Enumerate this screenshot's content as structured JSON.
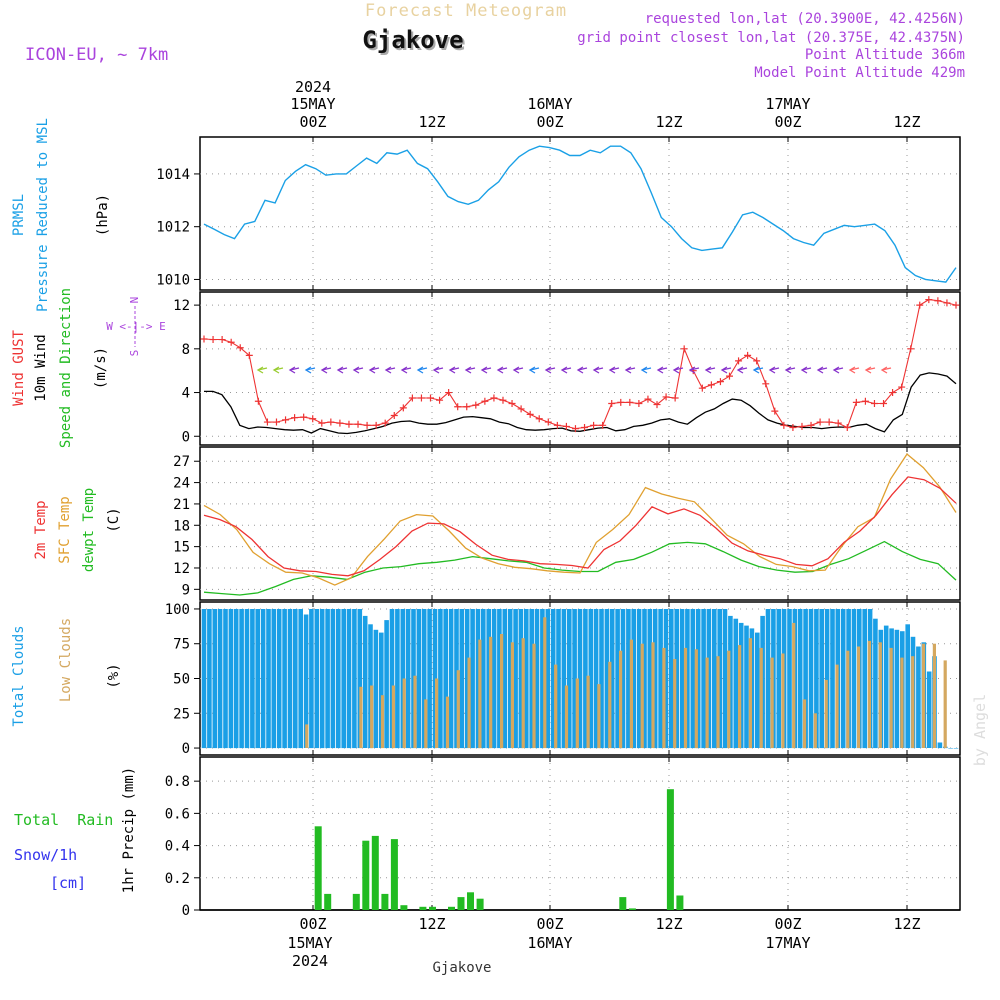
{
  "header": {
    "title": "Forecast Meteogram",
    "location": "Gjakove",
    "model": "ICON-EU, ~ 7km",
    "requested": "requested lon,lat (20.3900E, 42.4256N)",
    "gridpoint": "grid point closest lon,lat (20.375E, 42.4375N)",
    "point_alt": "Point Altitude 366m",
    "model_alt": "Model Point Altitude 429m",
    "watermark": "by Angel",
    "footer": "Gjakove"
  },
  "colors": {
    "pressure": "#1aa0e6",
    "gust": "#ee3333",
    "wind": "#000000",
    "temp2m": "#ee3333",
    "sfc": "#e0a030",
    "dewpt": "#22bb22",
    "total_clouds": "#1a9fe6",
    "low_clouds": "#d4a860",
    "rain": "#22bb22",
    "snow": "#3333ee",
    "purple": "#aa44dd",
    "title_tan": "#e8d2a0"
  },
  "time_axis": {
    "top_ticks": [
      "00Z",
      "12Z",
      "00Z",
      "12Z",
      "00Z",
      "12Z"
    ],
    "top_dates": [
      "15MAY",
      "16MAY",
      "17MAY"
    ],
    "year": "2024",
    "bottom_ticks": [
      "00Z",
      "12Z",
      "00Z",
      "12Z",
      "00Z",
      "12Z"
    ],
    "bottom_dates": [
      "15MAY",
      "16MAY",
      "17MAY"
    ],
    "bottom_year": "2024"
  },
  "panel_labels": {
    "p1": [
      "PRMSL",
      "Pressure Reduced to MSL",
      "(hPa)"
    ],
    "p2": [
      "Wind GUST",
      "10m Wind",
      "Speed and Direction",
      "(m/s)"
    ],
    "p3": [
      "2m Temp",
      "SFC Temp",
      "dewpt Temp",
      "(C)"
    ],
    "p4": [
      "Total Clouds",
      "Low Clouds",
      "(%)"
    ],
    "p5": [
      "Total  Rain",
      "Snow/1h",
      "[cm]",
      "1hr Precip (mm)"
    ],
    "compass": [
      "N",
      "W <-|-> E",
      "S"
    ]
  },
  "chart_data": {
    "type": "meteogram",
    "x_unit": "hours from 2024-05-14 15Z",
    "pressure": {
      "name": "PRMSL (hPa)",
      "yticks": [
        "1014",
        "1012",
        "1010"
      ],
      "ylim": [
        1009.6,
        1015.4
      ],
      "values": [
        1012.1,
        1011.9,
        1011.7,
        1011.55,
        1012.1,
        1012.2,
        1013.0,
        1012.9,
        1013.75,
        1014.1,
        1014.35,
        1014.2,
        1013.95,
        1014.0,
        1014.0,
        1014.3,
        1014.6,
        1014.4,
        1014.8,
        1014.75,
        1014.9,
        1014.4,
        1014.2,
        1013.7,
        1013.15,
        1012.95,
        1012.85,
        1013.0,
        1013.4,
        1013.7,
        1014.25,
        1014.65,
        1014.9,
        1015.05,
        1015.0,
        1014.9,
        1014.7,
        1014.7,
        1014.9,
        1014.8,
        1015.05,
        1015.05,
        1014.8,
        1014.2,
        1013.3,
        1012.35,
        1012.0,
        1011.55,
        1011.2,
        1011.1,
        1011.15,
        1011.2,
        1011.8,
        1012.45,
        1012.55,
        1012.35,
        1012.1,
        1011.85,
        1011.55,
        1011.4,
        1011.3,
        1011.75,
        1011.9,
        1012.05,
        1012.0,
        1012.05,
        1012.1,
        1011.85,
        1011.3,
        1010.45,
        1010.15,
        1010.0,
        1009.95,
        1009.9,
        1010.45
      ]
    },
    "wind": {
      "name": "10m Wind / Wind GUST (m/s)",
      "yticks": [
        "12",
        "8",
        "4",
        "0"
      ],
      "ylim": [
        -0.8,
        13.2
      ],
      "gust": [
        8.9,
        8.85,
        8.85,
        8.6,
        8.1,
        7.4,
        3.2,
        1.3,
        1.3,
        1.5,
        1.7,
        1.75,
        1.6,
        1.2,
        1.3,
        1.2,
        1.1,
        1.1,
        1.0,
        1.0,
        1.2,
        1.9,
        2.6,
        3.5,
        3.5,
        3.5,
        3.3,
        4.0,
        2.7,
        2.7,
        2.85,
        3.2,
        3.5,
        3.3,
        3.0,
        2.5,
        2.0,
        1.6,
        1.3,
        1.0,
        0.9,
        0.7,
        0.8,
        1.0,
        1.0,
        3.0,
        3.1,
        3.1,
        3.0,
        3.4,
        2.9,
        3.6,
        3.5,
        8.0,
        6.0,
        4.4,
        4.7,
        5.0,
        5.5,
        6.9,
        7.4,
        6.9,
        4.8,
        2.3,
        1.0,
        0.8,
        0.9,
        1.0,
        1.3,
        1.3,
        1.2,
        0.8,
        3.1,
        3.2,
        3.0,
        3.0,
        4.0,
        4.5,
        8.0,
        12.0,
        12.5,
        12.4,
        12.2,
        12.0
      ],
      "speed": [
        4.1,
        4.1,
        3.8,
        2.7,
        1.0,
        0.7,
        0.85,
        0.8,
        0.7,
        0.6,
        0.55,
        0.6,
        0.3,
        0.7,
        0.5,
        0.3,
        0.25,
        0.35,
        0.5,
        0.7,
        0.9,
        1.2,
        1.35,
        1.4,
        1.2,
        1.1,
        1.1,
        1.25,
        1.5,
        1.75,
        1.8,
        1.7,
        1.6,
        1.3,
        1.15,
        0.8,
        0.6,
        0.55,
        0.6,
        0.7,
        0.75,
        0.5,
        0.45,
        0.6,
        0.75,
        0.8,
        0.5,
        0.6,
        0.9,
        1.0,
        1.2,
        1.5,
        1.6,
        1.3,
        1.1,
        1.7,
        2.2,
        2.5,
        3.0,
        3.4,
        3.3,
        2.8,
        2.1,
        1.5,
        1.2,
        1.0,
        0.9,
        0.8,
        0.8,
        0.7,
        0.8,
        0.85,
        0.8,
        1.0,
        1.1,
        0.7,
        0.4,
        1.5,
        2.0,
        4.5,
        5.6,
        5.8,
        5.7,
        5.5,
        4.8
      ]
    },
    "temperature": {
      "name": "Temperature (C)",
      "yticks": [
        "27",
        "24",
        "21",
        "18",
        "15",
        "12",
        "9"
      ],
      "ylim": [
        7.5,
        29.0
      ],
      "t2m": [
        19.4,
        18.8,
        17.8,
        16.0,
        13.6,
        12.0,
        11.6,
        11.5,
        11.1,
        10.9,
        11.6,
        13.2,
        15.0,
        17.2,
        18.3,
        18.2,
        17.1,
        15.3,
        13.8,
        13.2,
        13.0,
        12.6,
        12.5,
        12.35,
        12.0,
        14.6,
        15.8,
        18.0,
        20.6,
        19.6,
        20.3,
        19.4,
        17.6,
        15.5,
        14.4,
        13.8,
        13.3,
        12.5,
        12.3,
        13.3,
        15.6,
        17.2,
        19.4,
        22.3,
        24.8,
        24.4,
        23.2,
        21.1
      ],
      "sfc": [
        20.8,
        19.5,
        17.4,
        14.2,
        12.6,
        11.4,
        11.3,
        10.6,
        9.6,
        10.6,
        13.6,
        16.0,
        18.6,
        19.5,
        19.3,
        17.2,
        14.8,
        13.4,
        12.6,
        12.1,
        11.9,
        11.6,
        11.4,
        11.3,
        15.6,
        17.4,
        19.5,
        23.3,
        22.4,
        21.8,
        21.3,
        19.0,
        16.6,
        15.4,
        13.6,
        12.5,
        12.2,
        11.6,
        11.7,
        15.0,
        17.8,
        19.1,
        24.5,
        28.0,
        26.1,
        23.4,
        19.8
      ],
      "dewpt": [
        8.6,
        8.4,
        8.2,
        8.5,
        9.4,
        10.4,
        10.9,
        10.7,
        10.4,
        11.4,
        12.0,
        12.2,
        12.6,
        12.8,
        13.1,
        13.6,
        13.3,
        13.0,
        12.8,
        12.0,
        11.7,
        11.5,
        11.5,
        12.8,
        13.2,
        14.2,
        15.4,
        15.6,
        15.4,
        14.3,
        13.1,
        12.2,
        11.7,
        11.4,
        11.5,
        12.5,
        13.3,
        14.5,
        15.7,
        14.3,
        13.2,
        12.6,
        10.3
      ]
    },
    "clouds": {
      "name": "Clouds (%)",
      "yticks": [
        "100",
        "75",
        "50",
        "25",
        "0"
      ],
      "ylim": [
        -5,
        105
      ],
      "total": [
        100,
        100,
        100,
        100,
        100,
        100,
        100,
        100,
        100,
        100,
        100,
        100,
        100,
        100,
        100,
        100,
        100,
        100,
        100,
        96,
        100,
        100,
        100,
        100,
        100,
        100,
        100,
        100,
        100,
        100,
        95,
        89,
        85,
        83,
        92,
        100,
        100,
        100,
        100,
        100,
        100,
        100,
        100,
        100,
        100,
        100,
        100,
        100,
        100,
        100,
        100,
        100,
        100,
        100,
        100,
        100,
        100,
        100,
        100,
        100,
        100,
        100,
        100,
        100,
        100,
        100,
        100,
        100,
        100,
        100,
        100,
        100,
        100,
        100,
        100,
        100,
        100,
        100,
        100,
        100,
        100,
        100,
        100,
        100,
        100,
        100,
        100,
        100,
        100,
        100,
        100,
        100,
        100,
        100,
        100,
        100,
        100,
        100,
        95,
        93,
        90,
        88,
        86,
        83,
        95,
        100,
        100,
        100,
        100,
        100,
        100,
        100,
        100,
        100,
        100,
        100,
        100,
        100,
        100,
        100,
        100,
        100,
        100,
        100,
        100,
        93,
        85,
        88,
        86,
        85,
        84,
        89,
        80,
        73,
        76,
        55,
        66,
        4,
        1,
        0,
        0
      ],
      "low": [
        0,
        0,
        0,
        0,
        0,
        0,
        0,
        0,
        0,
        0,
        0,
        0,
        0,
        0,
        0,
        0,
        0,
        0,
        0,
        17,
        0,
        0,
        0,
        0,
        0,
        0,
        0,
        0,
        0,
        44,
        0,
        45,
        0,
        38,
        0,
        45,
        0,
        50,
        0,
        52,
        0,
        35,
        0,
        50,
        0,
        37,
        0,
        56,
        0,
        65,
        0,
        78,
        0,
        80,
        0,
        82,
        0,
        76,
        0,
        79,
        0,
        75,
        0,
        94,
        0,
        60,
        0,
        45,
        0,
        50,
        0,
        52,
        0,
        46,
        0,
        62,
        0,
        70,
        0,
        78,
        0,
        75,
        0,
        76,
        0,
        72,
        0,
        64,
        0,
        72,
        0,
        71,
        0,
        65,
        0,
        66,
        0,
        70,
        0,
        74,
        0,
        79,
        0,
        72,
        0,
        65,
        0,
        68,
        0,
        90,
        0,
        35,
        0,
        25,
        0,
        49,
        0,
        60,
        0,
        70,
        0,
        73,
        0,
        77,
        0,
        76,
        0,
        72,
        0,
        65,
        0,
        66,
        0,
        75,
        0,
        75,
        0,
        63,
        0,
        0
      ]
    },
    "precip": {
      "name": "1hr Precip (mm)",
      "yticks": [
        "0.8",
        "0.6",
        "0.4",
        "0.2",
        "0"
      ],
      "ylim": [
        0,
        0.95
      ],
      "rain": [
        0,
        0,
        0,
        0,
        0,
        0,
        0,
        0,
        0,
        0,
        0,
        0,
        0.52,
        0.1,
        0,
        0,
        0.1,
        0.43,
        0.46,
        0.1,
        0.44,
        0.03,
        0,
        0.02,
        0.02,
        0,
        0.02,
        0.08,
        0.11,
        0.07,
        0,
        0,
        0,
        0,
        0,
        0,
        0,
        0,
        0,
        0,
        0,
        0,
        0,
        0,
        0.08,
        0.01,
        0,
        0,
        0,
        0.75,
        0.09,
        0,
        0,
        0,
        0,
        0,
        0,
        0,
        0,
        0,
        0,
        0,
        0,
        0,
        0,
        0,
        0,
        0,
        0,
        0,
        0,
        0,
        0,
        0,
        0,
        0,
        0,
        0,
        0,
        0
      ]
    }
  }
}
